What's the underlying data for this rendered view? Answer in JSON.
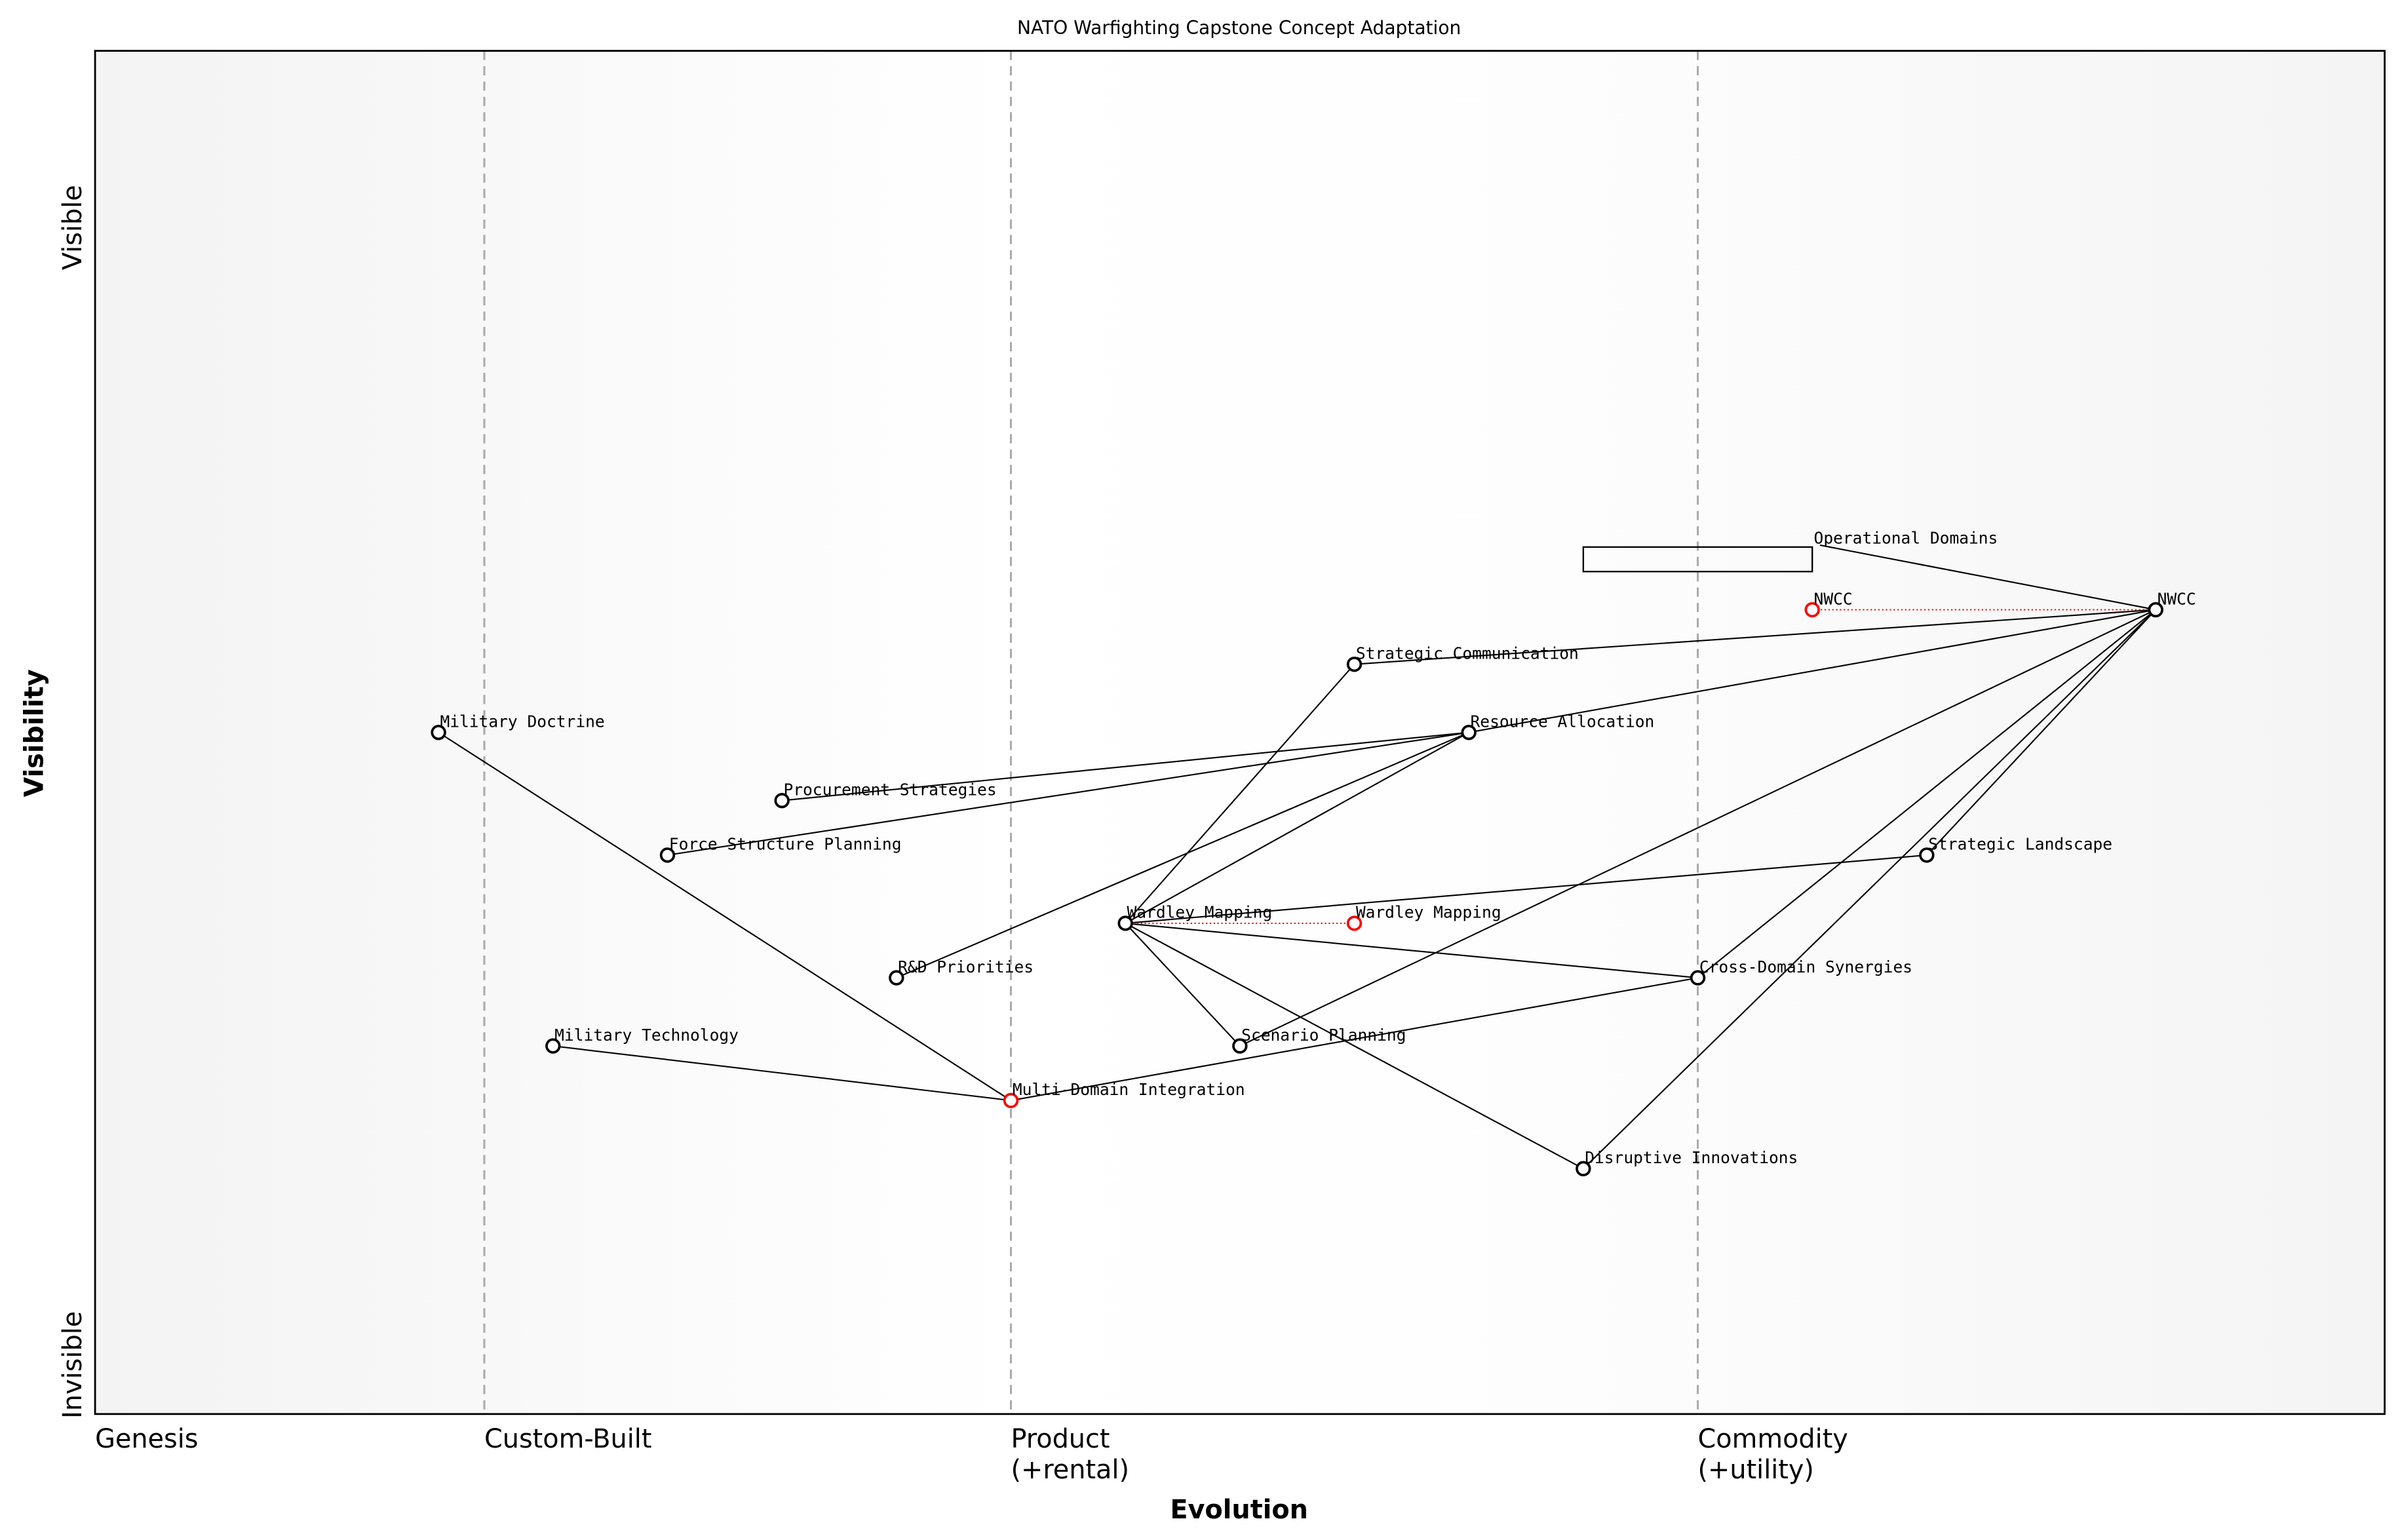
{
  "title": "NATO Warfighting Capstone Concept Adaptation",
  "axes": {
    "xlabel": "Evolution",
    "ylabel": "Visibility",
    "y_top": "Visible",
    "y_bottom": "Invisible",
    "stages": [
      {
        "line1": "Genesis",
        "line2": "",
        "x": 0.0
      },
      {
        "line1": "Custom-Built",
        "line2": "",
        "x": 0.17
      },
      {
        "line1": "Product",
        "line2": "(+rental)",
        "x": 0.4
      },
      {
        "line1": "Commodity",
        "line2": "(+utility)",
        "x": 0.7
      }
    ]
  },
  "colors": {
    "node": "#000000",
    "evolved": "#ff0000",
    "divider": "#aaaaaa"
  },
  "components": [
    {
      "id": "nwcc",
      "label": "NWCC",
      "evolution": 0.9,
      "visibility": 0.59
    },
    {
      "id": "strat-comm",
      "label": "Strategic Communication",
      "evolution": 0.55,
      "visibility": 0.55
    },
    {
      "id": "military-doctrine",
      "label": "Military Doctrine",
      "evolution": 0.15,
      "visibility": 0.5
    },
    {
      "id": "resource-allocation",
      "label": "Resource Allocation",
      "evolution": 0.6,
      "visibility": 0.5
    },
    {
      "id": "procurement",
      "label": "Procurement Strategies",
      "evolution": 0.3,
      "visibility": 0.45
    },
    {
      "id": "force-structure",
      "label": "Force Structure Planning",
      "evolution": 0.25,
      "visibility": 0.41
    },
    {
      "id": "strategic-landscape",
      "label": "Strategic Landscape",
      "evolution": 0.8,
      "visibility": 0.41
    },
    {
      "id": "wardley-mapping",
      "label": "Wardley Mapping",
      "evolution": 0.45,
      "visibility": 0.36
    },
    {
      "id": "rd-priorities",
      "label": "R&D Priorities",
      "evolution": 0.35,
      "visibility": 0.32
    },
    {
      "id": "cross-domain",
      "label": "Cross-Domain Synergies",
      "evolution": 0.7,
      "visibility": 0.32
    },
    {
      "id": "military-technology",
      "label": "Military Technology",
      "evolution": 0.2,
      "visibility": 0.27
    },
    {
      "id": "scenario-planning",
      "label": "Scenario Planning",
      "evolution": 0.5,
      "visibility": 0.27
    },
    {
      "id": "multi-domain",
      "label": "Multi-Domain Integration",
      "evolution": 0.4,
      "visibility": 0.23,
      "red": true
    },
    {
      "id": "disruptive",
      "label": "Disruptive Innovations",
      "evolution": 0.65,
      "visibility": 0.18
    }
  ],
  "evolved": [
    {
      "from": "nwcc",
      "label": "NWCC",
      "evolution": 0.75,
      "visibility": 0.59
    },
    {
      "from": "wardley-mapping",
      "label": "Wardley Mapping",
      "evolution": 0.55,
      "visibility": 0.36
    }
  ],
  "pipeline": {
    "label": "Operational Domains",
    "evolution": 0.75,
    "visibility": 0.643,
    "box_start": 0.65,
    "box_end": 0.75,
    "box_top": 0.636,
    "box_bottom": 0.618
  },
  "links": [
    [
      "pipeline",
      "nwcc"
    ],
    [
      "nwcc",
      "strat-comm"
    ],
    [
      "nwcc",
      "resource-allocation"
    ],
    [
      "nwcc",
      "scenario-planning"
    ],
    [
      "nwcc",
      "strategic-landscape"
    ],
    [
      "nwcc",
      "cross-domain"
    ],
    [
      "nwcc",
      "disruptive"
    ],
    [
      "strat-comm",
      "wardley-mapping"
    ],
    [
      "resource-allocation",
      "procurement"
    ],
    [
      "resource-allocation",
      "force-structure"
    ],
    [
      "resource-allocation",
      "rd-priorities"
    ],
    [
      "resource-allocation",
      "wardley-mapping"
    ],
    [
      "military-doctrine",
      "multi-domain"
    ],
    [
      "military-technology",
      "multi-domain"
    ],
    [
      "multi-domain",
      "cross-domain"
    ],
    [
      "wardley-mapping",
      "strategic-landscape"
    ],
    [
      "wardley-mapping",
      "cross-domain"
    ],
    [
      "wardley-mapping",
      "scenario-planning"
    ],
    [
      "wardley-mapping",
      "disruptive"
    ]
  ]
}
